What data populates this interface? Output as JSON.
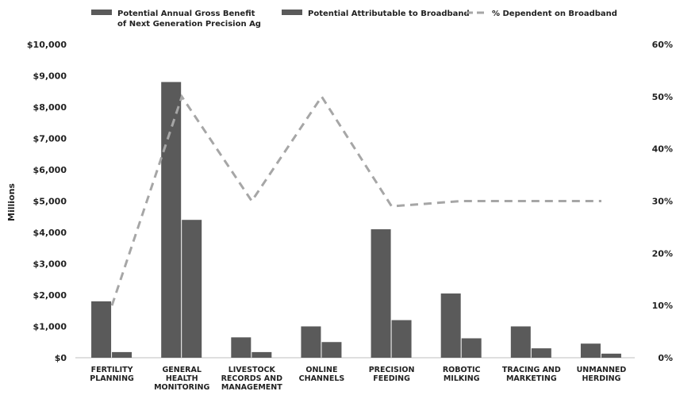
{
  "chart_data": {
    "type": "bar",
    "categories": [
      [
        "FERTILITY",
        "PLANNING"
      ],
      [
        "GENERAL",
        "HEALTH",
        "MONITORING"
      ],
      [
        "LIVESTOCK",
        "RECORDS AND",
        "MANAGEMENT"
      ],
      [
        "ONLINE",
        "CHANNELS"
      ],
      [
        "PRECISION",
        "FEEDING"
      ],
      [
        "ROBOTIC",
        "MILKING"
      ],
      [
        "TRACING AND",
        "MARKETING"
      ],
      [
        "UNMANNED",
        "HERDING"
      ]
    ],
    "series": [
      {
        "name": [
          "Potential Annual Gross Benefit",
          "of Next Generation Precision Ag"
        ],
        "kind": "bar",
        "axis": "left",
        "color": "#5a5a5a",
        "values": [
          1800,
          8800,
          650,
          1000,
          4100,
          2050,
          1000,
          450
        ]
      },
      {
        "name": "Potential Attributable to Broadband",
        "kind": "bar",
        "axis": "left",
        "color": "#5a5a5a",
        "values": [
          180,
          4400,
          180,
          500,
          1200,
          620,
          300,
          130
        ]
      },
      {
        "name": "% Dependent on Broadband",
        "kind": "line",
        "axis": "right",
        "style": "dashed",
        "color": "#a6a6a6",
        "values": [
          10,
          50,
          30,
          50,
          29,
          30,
          30,
          30
        ]
      }
    ],
    "ylabel": "Millions",
    "ylim": [
      0,
      10000
    ],
    "yticks": [
      "$0",
      "$1,000",
      "$2,000",
      "$3,000",
      "$4,000",
      "$5,000",
      "$6,000",
      "$7,000",
      "$8,000",
      "$9,000",
      "$10,000"
    ],
    "y2lim": [
      0,
      60
    ],
    "y2ticks": [
      "0%",
      "10%",
      "20%",
      "30%",
      "40%",
      "50%",
      "60%"
    ],
    "legend_position": "top",
    "grid": false
  }
}
